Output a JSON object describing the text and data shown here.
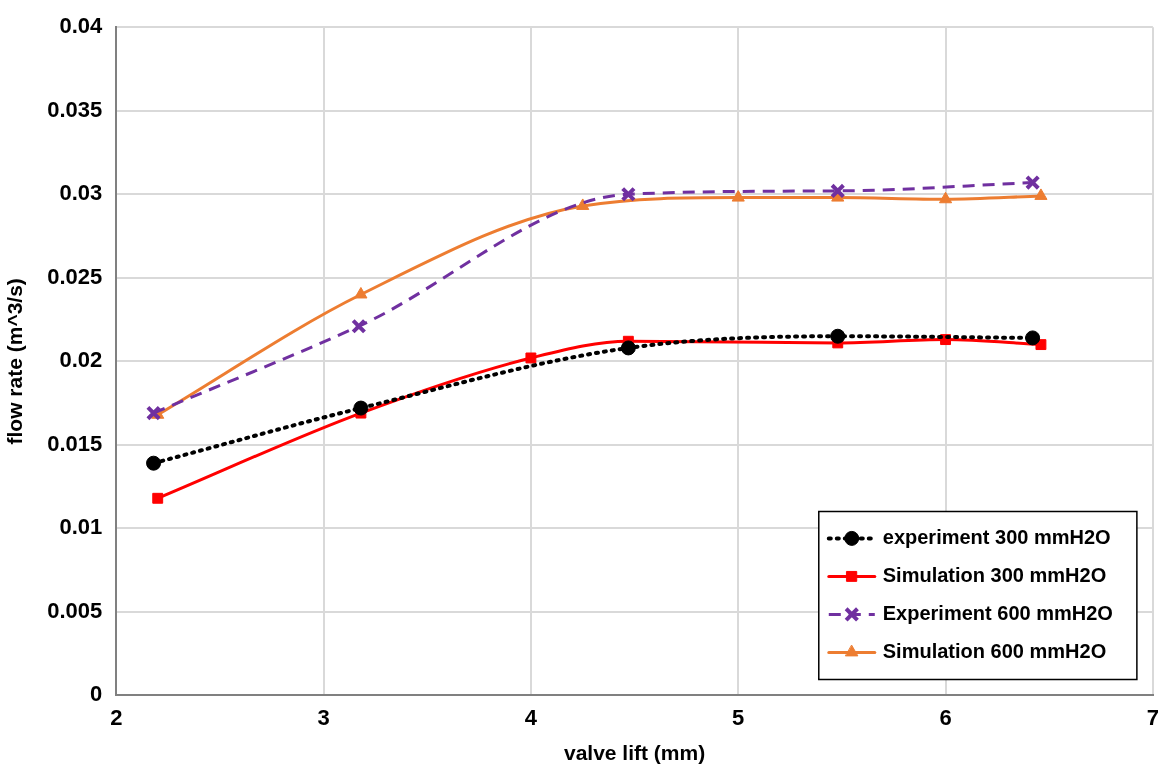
{
  "chart_data": {
    "type": "line",
    "xlabel": "valve lift (mm)",
    "ylabel": "flow rate (m^3/s)",
    "xlim": [
      2,
      7
    ],
    "xticks": [
      2,
      3,
      4,
      5,
      6,
      7
    ],
    "ylim": [
      0,
      0.04
    ],
    "yticks": [
      0,
      0.005,
      0.01,
      0.015,
      0.02,
      0.025,
      0.03,
      0.035,
      0.04
    ],
    "grid": true,
    "legend": "bottom right",
    "series": [
      {
        "name": "experiment 300 mmH2O",
        "color": "#000000",
        "marker": "circle",
        "line_style": "dotted",
        "x": [
          2.18,
          3.18,
          4.47,
          5.48,
          6.42
        ],
        "values": [
          0.0139,
          0.0172,
          0.0208,
          0.0215,
          0.0214
        ]
      },
      {
        "name": "Simulation 300 mmH2O",
        "color": "#ff0000",
        "marker": "square",
        "line_style": "solid",
        "x": [
          2.2,
          3.18,
          4.0,
          4.47,
          5.48,
          6.0,
          6.46
        ],
        "values": [
          0.0118,
          0.0169,
          0.0202,
          0.0212,
          0.0211,
          0.0213,
          0.021
        ]
      },
      {
        "name": "Experiment 600 mmH2O",
        "color": "#7030a0",
        "marker": "cross",
        "line_style": "dashed",
        "x": [
          2.18,
          3.17,
          4.47,
          5.48,
          6.42
        ],
        "values": [
          0.0169,
          0.0221,
          0.03,
          0.0302,
          0.0307
        ]
      },
      {
        "name": "Simulation 600 mmH2O",
        "color": "#ed7d31",
        "marker": "triangle",
        "line_style": "solid",
        "x": [
          2.2,
          3.18,
          4.25,
          5.0,
          5.48,
          6.0,
          6.46
        ],
        "values": [
          0.0168,
          0.024,
          0.0293,
          0.0298,
          0.0298,
          0.0297,
          0.0299
        ]
      }
    ]
  }
}
